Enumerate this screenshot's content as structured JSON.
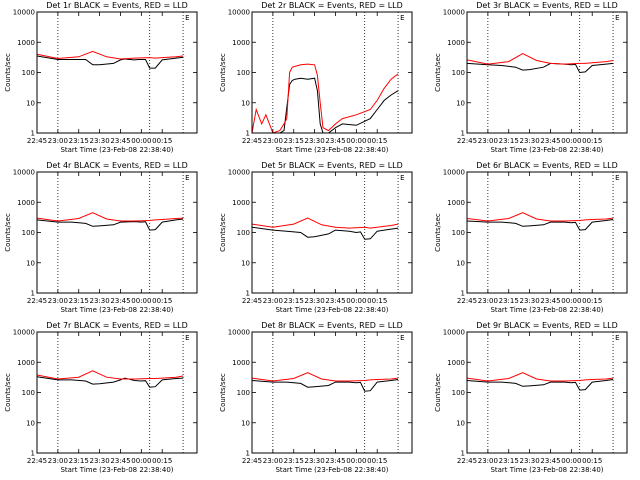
{
  "chart_data": [
    {
      "type": "line",
      "title": "Det 1r BLACK = Events, RED = LLD",
      "xlabel": "Start Time (23-Feb-08 22:38:40)",
      "ylabel": "Counts/sec",
      "x_ticks": [
        "22:45",
        "23:00",
        "23:15",
        "23:30",
        "23:45",
        "00:00",
        "00:15"
      ],
      "y_ticks": [
        "1",
        "10",
        "100",
        "1000",
        "10000"
      ],
      "ylim": [
        1,
        10000
      ],
      "y_scale": "log",
      "xlim_minutes": [
        -15,
        100
      ],
      "marker_text": "E",
      "series": [
        {
          "color": "#000000",
          "x": [
            -15,
            0,
            10,
            20,
            25,
            30,
            40,
            45,
            48,
            55,
            58,
            63,
            66,
            70,
            75,
            85,
            90
          ],
          "y": [
            350,
            270,
            270,
            270,
            180,
            180,
            200,
            260,
            280,
            260,
            270,
            270,
            140,
            140,
            260,
            300,
            320
          ]
        },
        {
          "color": "#ff0000",
          "x": [
            -15,
            0,
            15,
            25,
            35,
            45,
            55,
            66,
            70,
            75,
            85,
            90
          ],
          "y": [
            400,
            290,
            330,
            500,
            330,
            280,
            300,
            310,
            300,
            310,
            330,
            350
          ]
        }
      ]
    },
    {
      "type": "line",
      "title": "Det 2r BLACK = Events, RED = LLD",
      "xlabel": "Start Time (23-Feb-08 22:38:40)",
      "ylabel": "Counts/sec",
      "x_ticks": [
        "22:45",
        "23:00",
        "23:15",
        "23:30",
        "23:45",
        "00:00",
        "00:15"
      ],
      "y_ticks": [
        "1",
        "10",
        "100",
        "1000",
        "10000"
      ],
      "ylim": [
        1,
        10000
      ],
      "y_scale": "log",
      "xlim_minutes": [
        -15,
        100
      ],
      "marker_text": "E",
      "series": [
        {
          "color": "#000000",
          "x": [
            -15,
            -10,
            -5,
            0,
            5,
            8,
            12,
            14,
            16,
            20,
            25,
            30,
            32,
            34,
            36,
            40,
            45,
            50,
            60,
            70,
            75,
            80,
            85,
            90
          ],
          "y": [
            1,
            1,
            1,
            1,
            1,
            1.2,
            40,
            55,
            60,
            65,
            60,
            65,
            25,
            2,
            1,
            1,
            1.5,
            2,
            1.8,
            3,
            6,
            12,
            18,
            25
          ]
        },
        {
          "color": "#ff0000",
          "x": [
            -15,
            -12,
            -8,
            -5,
            0,
            5,
            8,
            10,
            12,
            14,
            20,
            25,
            30,
            32,
            34,
            36,
            40,
            45,
            50,
            60,
            70,
            75,
            80,
            85,
            90
          ],
          "y": [
            1,
            6,
            2,
            4,
            1,
            1.2,
            2,
            3,
            100,
            150,
            180,
            190,
            180,
            80,
            10,
            1.5,
            1.2,
            2,
            3,
            4,
            6,
            12,
            30,
            60,
            90
          ]
        }
      ]
    },
    {
      "type": "line",
      "title": "Det 3r BLACK = Events, RED = LLD",
      "xlabel": "Start Time (23-Feb-08 22:38:40)",
      "ylabel": "Counts/sec",
      "x_ticks": [
        "22:45",
        "23:00",
        "23:15",
        "23:30",
        "23:45",
        "00:00",
        "00:15"
      ],
      "y_ticks": [
        "1",
        "10",
        "100",
        "1000",
        "10000"
      ],
      "ylim": [
        1,
        10000
      ],
      "y_scale": "log",
      "xlim_minutes": [
        -15,
        100
      ],
      "marker_text": "E",
      "series": [
        {
          "color": "#000000",
          "x": [
            -15,
            0,
            10,
            20,
            25,
            30,
            40,
            45,
            55,
            60,
            63,
            66,
            70,
            75,
            85,
            90
          ],
          "y": [
            200,
            180,
            170,
            150,
            120,
            125,
            150,
            200,
            190,
            180,
            185,
            100,
            105,
            170,
            190,
            200
          ]
        },
        {
          "color": "#ff0000",
          "x": [
            -15,
            0,
            15,
            25,
            35,
            45,
            55,
            66,
            70,
            75,
            85,
            90
          ],
          "y": [
            260,
            190,
            230,
            420,
            250,
            200,
            190,
            200,
            200,
            210,
            230,
            250
          ]
        }
      ]
    },
    {
      "type": "line",
      "title": "Det 4r BLACK = Events, RED = LLD",
      "xlabel": "Start Time (23-Feb-08 22:38:40)",
      "ylabel": "Counts/sec",
      "x_ticks": [
        "22:45",
        "23:00",
        "23:15",
        "23:30",
        "23:45",
        "00:00",
        "00:15"
      ],
      "y_ticks": [
        "1",
        "10",
        "100",
        "1000",
        "10000"
      ],
      "ylim": [
        1,
        10000
      ],
      "y_scale": "log",
      "xlim_minutes": [
        -15,
        100
      ],
      "marker_text": "E",
      "series": [
        {
          "color": "#000000",
          "x": [
            -15,
            0,
            10,
            20,
            25,
            30,
            40,
            45,
            55,
            60,
            63,
            66,
            70,
            75,
            85,
            90
          ],
          "y": [
            260,
            220,
            220,
            200,
            160,
            165,
            180,
            220,
            230,
            220,
            225,
            120,
            125,
            220,
            260,
            280
          ]
        },
        {
          "color": "#ff0000",
          "x": [
            -15,
            0,
            15,
            25,
            35,
            45,
            55,
            66,
            70,
            75,
            85,
            90
          ],
          "y": [
            300,
            240,
            290,
            450,
            280,
            240,
            240,
            250,
            260,
            270,
            290,
            300
          ]
        }
      ]
    },
    {
      "type": "line",
      "title": "Det 5r BLACK = Events, RED = LLD",
      "xlabel": "Start Time (23-Feb-08 22:38:40)",
      "ylabel": "Counts/sec",
      "x_ticks": [
        "22:45",
        "23:00",
        "23:15",
        "23:30",
        "23:45",
        "00:00",
        "00:15"
      ],
      "y_ticks": [
        "1",
        "10",
        "100",
        "1000",
        "10000"
      ],
      "ylim": [
        1,
        10000
      ],
      "y_scale": "log",
      "xlim_minutes": [
        -15,
        100
      ],
      "marker_text": "E",
      "series": [
        {
          "color": "#000000",
          "x": [
            -15,
            0,
            10,
            20,
            25,
            30,
            40,
            45,
            55,
            60,
            63,
            66,
            70,
            75,
            85,
            90
          ],
          "y": [
            150,
            120,
            110,
            100,
            70,
            72,
            90,
            120,
            110,
            100,
            105,
            60,
            62,
            110,
            130,
            140
          ]
        },
        {
          "color": "#ff0000",
          "x": [
            -15,
            0,
            15,
            25,
            35,
            45,
            55,
            66,
            70,
            75,
            85,
            90
          ],
          "y": [
            190,
            150,
            190,
            300,
            180,
            150,
            140,
            150,
            140,
            150,
            170,
            190
          ]
        }
      ]
    },
    {
      "type": "line",
      "title": "Det 6r BLACK = Events, RED = LLD",
      "xlabel": "Start Time (23-Feb-08 22:38:40)",
      "ylabel": "Counts/sec",
      "x_ticks": [
        "22:45",
        "23:00",
        "23:15",
        "23:30",
        "23:45",
        "00:00",
        "00:15"
      ],
      "y_ticks": [
        "1",
        "10",
        "100",
        "1000",
        "10000"
      ],
      "ylim": [
        1,
        10000
      ],
      "y_scale": "log",
      "xlim_minutes": [
        -15,
        100
      ],
      "marker_text": "E",
      "series": [
        {
          "color": "#000000",
          "x": [
            -15,
            0,
            10,
            20,
            25,
            30,
            40,
            45,
            55,
            60,
            63,
            66,
            70,
            75,
            85,
            90
          ],
          "y": [
            240,
            220,
            220,
            200,
            160,
            165,
            180,
            220,
            220,
            210,
            215,
            120,
            125,
            220,
            250,
            270
          ]
        },
        {
          "color": "#ff0000",
          "x": [
            -15,
            0,
            15,
            25,
            35,
            45,
            55,
            66,
            70,
            75,
            85,
            90
          ],
          "y": [
            290,
            240,
            290,
            450,
            280,
            240,
            240,
            250,
            260,
            270,
            280,
            300
          ]
        }
      ]
    },
    {
      "type": "line",
      "title": "Det 7r BLACK = Events, RED = LLD",
      "xlabel": "Start Time (23-Feb-08 22:38:40)",
      "ylabel": "Counts/sec",
      "x_ticks": [
        "22:45",
        "23:00",
        "23:15",
        "23:30",
        "23:45",
        "00:00",
        "00:15"
      ],
      "y_ticks": [
        "1",
        "10",
        "100",
        "1000",
        "10000"
      ],
      "ylim": [
        1,
        10000
      ],
      "y_scale": "log",
      "xlim_minutes": [
        -15,
        100
      ],
      "marker_text": "E",
      "series": [
        {
          "color": "#000000",
          "x": [
            -15,
            0,
            10,
            20,
            25,
            30,
            40,
            45,
            48,
            55,
            60,
            63,
            66,
            70,
            75,
            85,
            90
          ],
          "y": [
            330,
            260,
            260,
            240,
            190,
            195,
            220,
            260,
            300,
            250,
            240,
            245,
            150,
            155,
            260,
            290,
            300
          ]
        },
        {
          "color": "#ff0000",
          "x": [
            -15,
            0,
            15,
            25,
            35,
            45,
            55,
            66,
            70,
            75,
            85,
            90
          ],
          "y": [
            380,
            280,
            320,
            520,
            320,
            280,
            280,
            290,
            290,
            300,
            320,
            350
          ]
        }
      ]
    },
    {
      "type": "line",
      "title": "Det 8r BLACK = Events, RED = LLD",
      "xlabel": "Start Time (23-Feb-08 22:38:40)",
      "ylabel": "Counts/sec",
      "x_ticks": [
        "22:45",
        "23:00",
        "23:15",
        "23:30",
        "23:45",
        "00:00",
        "00:15"
      ],
      "y_ticks": [
        "1",
        "10",
        "100",
        "1000",
        "10000"
      ],
      "ylim": [
        1,
        10000
      ],
      "y_scale": "log",
      "xlim_minutes": [
        -15,
        100
      ],
      "marker_text": "E",
      "series": [
        {
          "color": "#000000",
          "x": [
            -15,
            0,
            10,
            20,
            25,
            30,
            40,
            45,
            55,
            60,
            63,
            66,
            70,
            75,
            85,
            90
          ],
          "y": [
            250,
            220,
            220,
            200,
            150,
            155,
            170,
            220,
            220,
            210,
            215,
            110,
            115,
            220,
            250,
            270
          ]
        },
        {
          "color": "#ff0000",
          "x": [
            -15,
            0,
            15,
            25,
            35,
            45,
            55,
            66,
            70,
            75,
            85,
            90
          ],
          "y": [
            300,
            240,
            290,
            450,
            280,
            240,
            240,
            250,
            260,
            270,
            280,
            300
          ]
        }
      ]
    },
    {
      "type": "line",
      "title": "Det 9r BLACK = Events, RED = LLD",
      "xlabel": "Start Time (23-Feb-08 22:38:40)",
      "ylabel": "Counts/sec",
      "x_ticks": [
        "22:45",
        "23:00",
        "23:15",
        "23:30",
        "23:45",
        "00:00",
        "00:15"
      ],
      "y_ticks": [
        "1",
        "10",
        "100",
        "1000",
        "10000"
      ],
      "ylim": [
        1,
        10000
      ],
      "y_scale": "log",
      "xlim_minutes": [
        -15,
        100
      ],
      "marker_text": "E",
      "series": [
        {
          "color": "#000000",
          "x": [
            -15,
            0,
            10,
            20,
            25,
            30,
            40,
            45,
            55,
            60,
            63,
            66,
            70,
            75,
            85,
            90
          ],
          "y": [
            250,
            220,
            220,
            200,
            160,
            165,
            180,
            220,
            220,
            210,
            215,
            120,
            125,
            220,
            250,
            270
          ]
        },
        {
          "color": "#ff0000",
          "x": [
            -15,
            0,
            15,
            25,
            35,
            45,
            55,
            66,
            70,
            75,
            85,
            90
          ],
          "y": [
            300,
            240,
            290,
            450,
            280,
            240,
            240,
            250,
            260,
            270,
            280,
            300
          ]
        }
      ]
    }
  ],
  "markers_minutes": [
    0,
    66,
    90
  ]
}
